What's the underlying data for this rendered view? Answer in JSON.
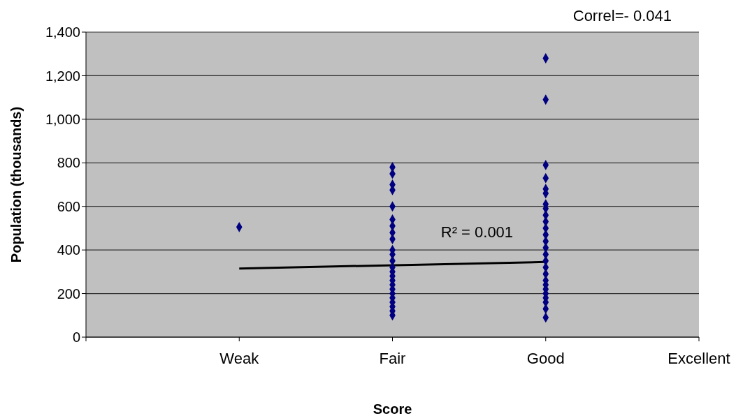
{
  "chart_data": {
    "type": "scatter",
    "xlabel": "Score",
    "ylabel": "Population (thousands)",
    "annotations": [
      "Correl=- 0.041",
      "R² = 0.001"
    ],
    "categories": [
      null,
      "Weak",
      "Fair",
      "Good",
      "Excellent"
    ],
    "ylim": [
      0,
      1400
    ],
    "yticks": [
      {
        "value": 0,
        "label": "0"
      },
      {
        "value": 200,
        "label": "200"
      },
      {
        "value": 400,
        "label": "400"
      },
      {
        "value": 600,
        "label": "600"
      },
      {
        "value": 800,
        "label": "800"
      },
      {
        "value": 1000,
        "label": "1,000"
      },
      {
        "value": 1200,
        "label": "1,200"
      },
      {
        "value": 1400,
        "label": "1,400"
      }
    ],
    "grid": "y",
    "series": [
      {
        "color": "#000080",
        "marker": "diamond",
        "x": [
          "Weak",
          "Fair",
          "Fair",
          "Fair",
          "Fair",
          "Fair",
          "Fair",
          "Fair",
          "Fair",
          "Fair",
          "Fair",
          "Fair",
          "Fair",
          "Fair",
          "Fair",
          "Fair",
          "Fair",
          "Fair",
          "Fair",
          "Fair",
          "Fair",
          "Fair",
          "Fair",
          "Fair",
          "Fair",
          "Good",
          "Good",
          "Good",
          "Good",
          "Good",
          "Good",
          "Good",
          "Good",
          "Good",
          "Good",
          "Good",
          "Good",
          "Good",
          "Good",
          "Good",
          "Good",
          "Good",
          "Good",
          "Good",
          "Good",
          "Good",
          "Good",
          "Good",
          "Good",
          "Good",
          "Good"
        ],
        "values": [
          505,
          780,
          750,
          700,
          675,
          600,
          540,
          510,
          480,
          450,
          400,
          380,
          350,
          320,
          300,
          280,
          260,
          240,
          220,
          200,
          180,
          160,
          140,
          120,
          100,
          1280,
          1090,
          790,
          730,
          680,
          660,
          610,
          590,
          560,
          530,
          500,
          470,
          440,
          410,
          380,
          350,
          320,
          290,
          260,
          240,
          220,
          200,
          180,
          160,
          130,
          90
        ]
      },
      {
        "type": "line",
        "color": "#000000",
        "marker": "none",
        "x": [
          "Weak",
          "Good"
        ],
        "values": [
          315,
          345
        ]
      }
    ]
  }
}
